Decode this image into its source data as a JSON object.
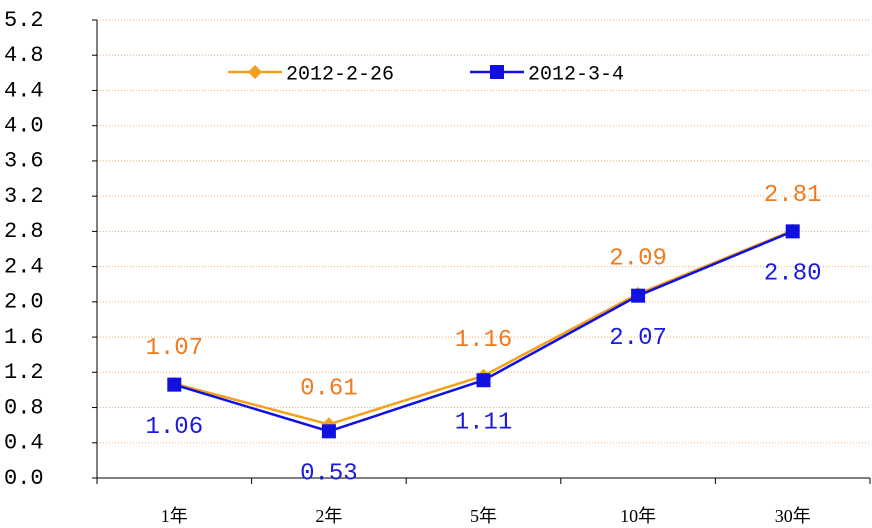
{
  "chart_data": {
    "type": "line",
    "categories": [
      "1年",
      "2年",
      "5年",
      "10年",
      "30年"
    ],
    "series": [
      {
        "name": "2012-2-26",
        "color": "#f5a01a",
        "label_color": "#f07a20",
        "marker": "diamond",
        "values": [
          1.07,
          0.61,
          1.16,
          2.09,
          2.81
        ],
        "value_labels": [
          "1.07",
          "0.61",
          "1.16",
          "2.09",
          "2.81"
        ]
      },
      {
        "name": "2012-3-4",
        "color": "#1010e0",
        "label_color": "#1a1ae0",
        "marker": "square",
        "values": [
          1.06,
          0.53,
          1.11,
          2.07,
          2.8
        ],
        "value_labels": [
          "1.06",
          "0.53",
          "1.11",
          "2.07",
          "2.80"
        ]
      }
    ],
    "ylim": [
      0,
      5.2
    ],
    "yticks": [
      {
        "value": 0,
        "label": "0.0"
      },
      0.4,
      0.8,
      1.2,
      1.6,
      {
        "value": 2,
        "label": "2.0"
      },
      2.4,
      2.8,
      3.2,
      3.6,
      {
        "value": 4,
        "label": "4.0"
      },
      4.4,
      4.8,
      5.2
    ],
    "grid": true
  }
}
